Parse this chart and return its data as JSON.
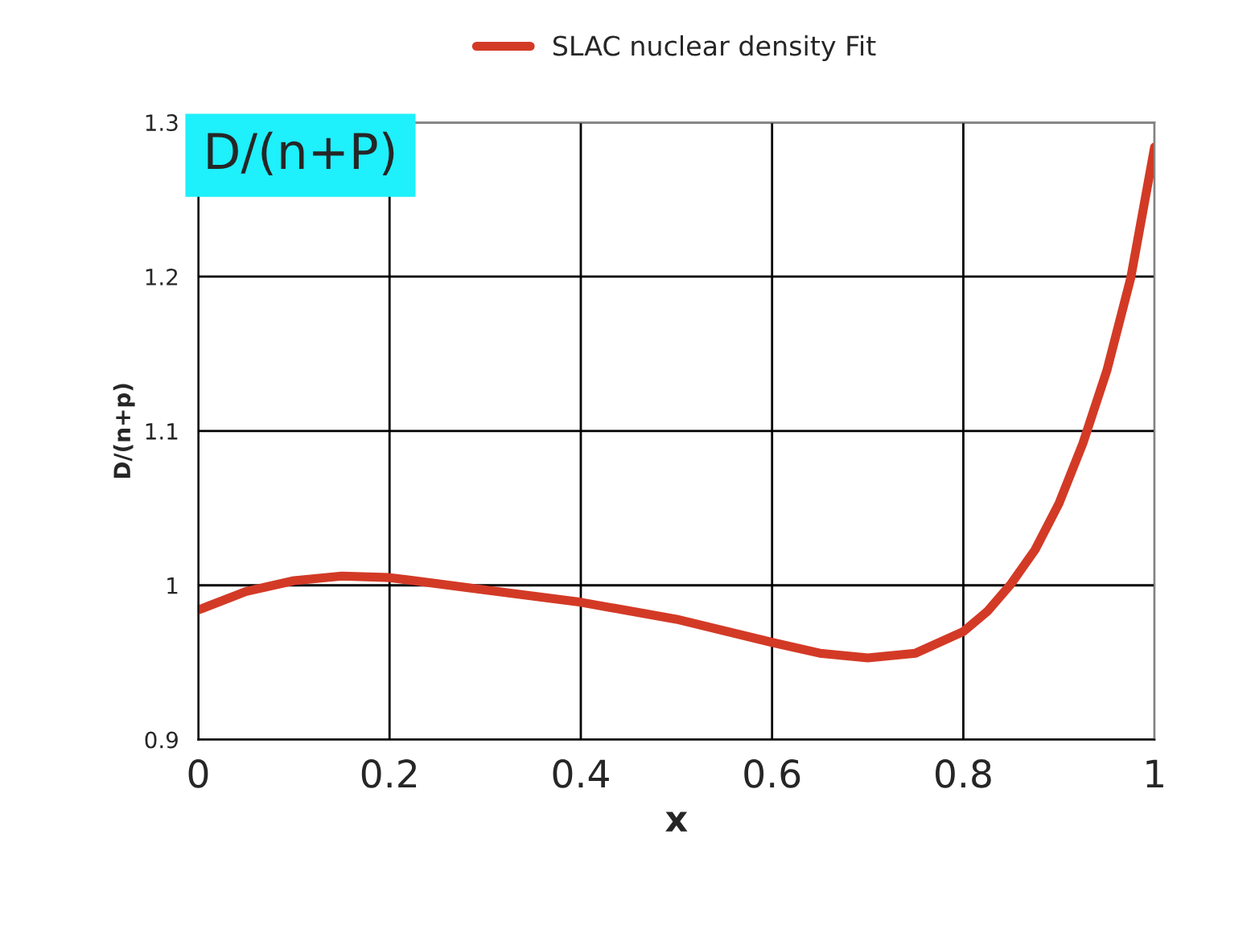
{
  "chart_data": {
    "type": "line",
    "xlabel": "x",
    "ylabel": "D/(n+p)",
    "x": [
      0,
      0.05,
      0.1,
      0.15,
      0.2,
      0.3,
      0.4,
      0.5,
      0.6,
      0.65,
      0.7,
      0.75,
      0.8,
      0.825,
      0.85,
      0.875,
      0.9,
      0.925,
      0.95,
      0.975,
      1.0
    ],
    "series": [
      {
        "name": "SLAC nuclear density Fit",
        "color": "#d33a26",
        "values": [
          0.984,
          0.996,
          1.003,
          1.006,
          1.005,
          0.997,
          0.989,
          0.978,
          0.963,
          0.956,
          0.953,
          0.956,
          0.97,
          0.983,
          1.001,
          1.023,
          1.053,
          1.092,
          1.139,
          1.199,
          1.284
        ]
      }
    ],
    "annotations": [
      "D/(n+P)"
    ],
    "xlim": [
      0,
      1
    ],
    "xticks": [
      0,
      0.2,
      0.4,
      0.6,
      0.8,
      1
    ],
    "ylim": [
      0.9,
      1.3
    ],
    "yticks": [
      0.9,
      1,
      1.1,
      1.2,
      1.3
    ],
    "grid": true,
    "legend": "top",
    "marker": "none",
    "line_style": "solid"
  }
}
